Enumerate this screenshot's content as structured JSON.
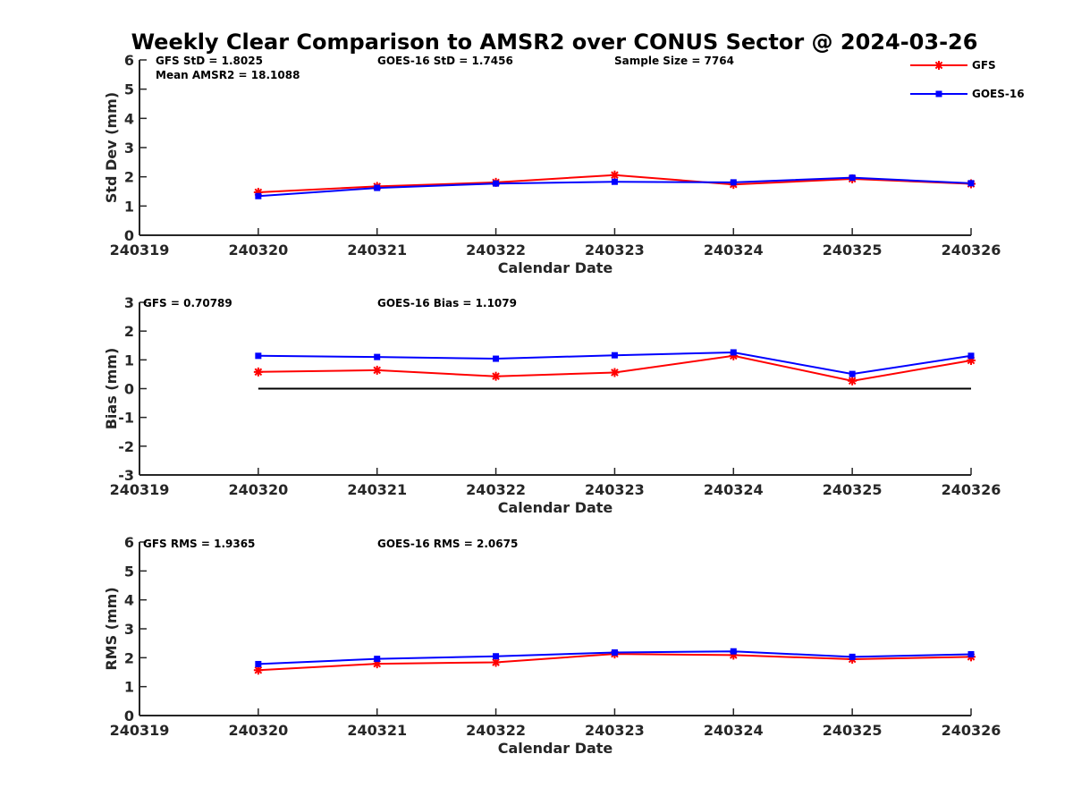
{
  "title": "Weekly Clear Comparison to AMSR2 over CONUS Sector @ 2024-03-26",
  "legend": {
    "placement": "top-right",
    "items": [
      "GFS",
      "GOES-16"
    ]
  },
  "colors": {
    "GFS": "#ff0000",
    "GOES-16": "#0000ff",
    "zero_line": "#000000",
    "axis": "#262626"
  },
  "chart_data": [
    {
      "type": "line",
      "x": [
        240320,
        240321,
        240322,
        240323,
        240324,
        240325,
        240326
      ],
      "xlim": [
        240319,
        240326
      ],
      "xticks": [
        "240319",
        "240320",
        "240321",
        "240322",
        "240323",
        "240324",
        "240325",
        "240326"
      ],
      "xlabel": "Calendar Date",
      "ylabel": "Std Dev (mm)",
      "ylim": [
        0,
        6
      ],
      "yticks": [
        "0",
        "1",
        "2",
        "3",
        "4",
        "5",
        "6"
      ],
      "grid": false,
      "series": [
        {
          "name": "GFS",
          "marker": "asterisk",
          "values": [
            1.47,
            1.67,
            1.81,
            2.06,
            1.74,
            1.93,
            1.76
          ]
        },
        {
          "name": "GOES-16",
          "marker": "square",
          "values": [
            1.34,
            1.62,
            1.77,
            1.83,
            1.81,
            1.97,
            1.78
          ]
        }
      ],
      "annotations": [
        "GFS StD = 1.8025",
        "GOES-16 StD = 1.7456",
        "Sample Size = 7764",
        "Mean AMSR2 = 18.1088"
      ]
    },
    {
      "type": "line",
      "x": [
        240320,
        240321,
        240322,
        240323,
        240324,
        240325,
        240326
      ],
      "xlim": [
        240319,
        240326
      ],
      "xticks": [
        "240319",
        "240320",
        "240321",
        "240322",
        "240323",
        "240324",
        "240325",
        "240326"
      ],
      "xlabel": "Calendar Date",
      "ylabel": "Bias (mm)",
      "ylim": [
        -3,
        3
      ],
      "yticks": [
        "-3",
        "-2",
        "-1",
        "0",
        "1",
        "2",
        "3"
      ],
      "grid": false,
      "reference_line": 0,
      "series": [
        {
          "name": "GFS",
          "marker": "asterisk",
          "values": [
            0.58,
            0.64,
            0.43,
            0.56,
            1.14,
            0.27,
            0.98
          ]
        },
        {
          "name": "GOES-16",
          "marker": "square",
          "values": [
            1.14,
            1.1,
            1.04,
            1.16,
            1.26,
            0.51,
            1.14
          ]
        }
      ],
      "annotations": [
        "GFS = 0.70789",
        "GOES-16 Bias  = 1.1079"
      ]
    },
    {
      "type": "line",
      "x": [
        240320,
        240321,
        240322,
        240323,
        240324,
        240325,
        240326
      ],
      "xlim": [
        240319,
        240326
      ],
      "xticks": [
        "240319",
        "240320",
        "240321",
        "240322",
        "240323",
        "240324",
        "240325",
        "240326"
      ],
      "xlabel": "Calendar Date",
      "ylabel": "RMS (mm)",
      "ylim": [
        0,
        6
      ],
      "yticks": [
        "0",
        "1",
        "2",
        "3",
        "4",
        "5",
        "6"
      ],
      "grid": false,
      "series": [
        {
          "name": "GFS",
          "marker": "asterisk",
          "values": [
            1.57,
            1.79,
            1.84,
            2.13,
            2.09,
            1.95,
            2.03
          ]
        },
        {
          "name": "GOES-16",
          "marker": "square",
          "values": [
            1.78,
            1.96,
            2.05,
            2.18,
            2.22,
            2.03,
            2.12
          ]
        }
      ],
      "annotations": [
        "GFS RMS = 1.9365",
        "GOES-16 RMS = 2.0675"
      ]
    }
  ]
}
